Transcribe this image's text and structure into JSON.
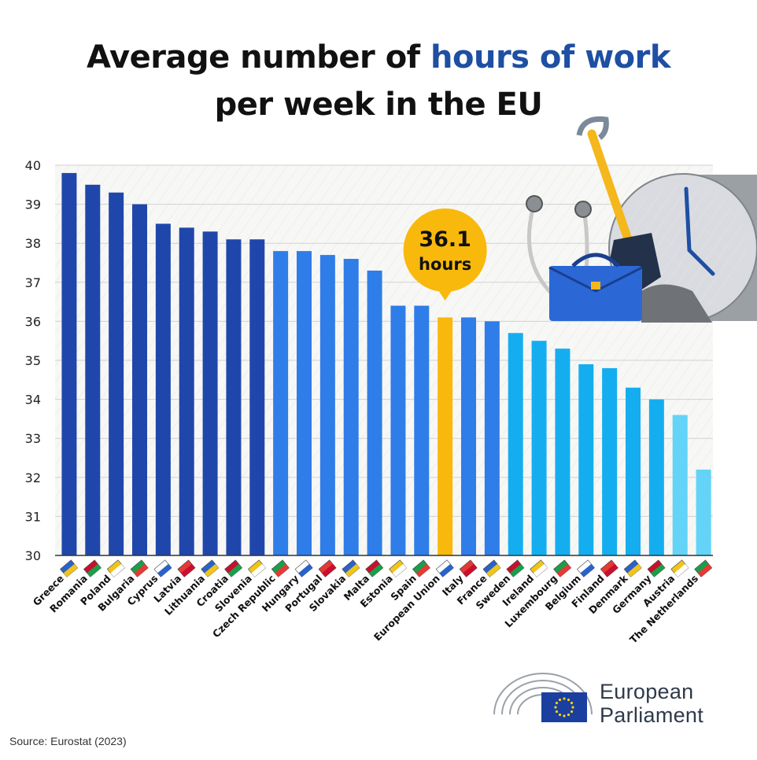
{
  "title": {
    "prefix": "Average number of ",
    "highlight": "hours of work",
    "line2": "per week in the EU"
  },
  "callout": {
    "value": "36.1",
    "unit": "hours"
  },
  "source": "Source: Eurostat (2023)",
  "logo": {
    "line1": "European",
    "line2": "Parliament"
  },
  "colors": {
    "dark_blue": "#1f47ab",
    "mid_blue": "#2f7de8",
    "light_blue": "#14aef0",
    "pale_blue": "#63d3f7",
    "highlight": "#f8b90c"
  },
  "chart_data": {
    "type": "bar",
    "title": "Average number of hours of work per week in the EU",
    "ylim": [
      30,
      40
    ],
    "yticks": [
      "30",
      "31",
      "32",
      "33",
      "34",
      "35",
      "36",
      "37",
      "38",
      "39",
      "40"
    ],
    "grid": true,
    "categories": [
      "Greece",
      "Romania",
      "Poland",
      "Bulgaria",
      "Cyprus",
      "Latvia",
      "Lithuania",
      "Croatia",
      "Slovenia",
      "Czech Republic",
      "Hungary",
      "Portugal",
      "Slovakia",
      "Malta",
      "Estonia",
      "Spain",
      "European Union",
      "Italy",
      "France",
      "Sweden",
      "Ireland",
      "Luxembourg",
      "Belgium",
      "Finland",
      "Denmark",
      "Germany",
      "Austria",
      "The Netherlands"
    ],
    "values": [
      39.8,
      39.5,
      39.3,
      39.0,
      38.5,
      38.4,
      38.3,
      38.1,
      38.1,
      37.8,
      37.8,
      37.7,
      37.6,
      37.3,
      36.4,
      36.4,
      36.1,
      36.1,
      36.0,
      35.7,
      35.5,
      35.3,
      34.9,
      34.8,
      34.3,
      34.0,
      33.6,
      32.2
    ],
    "highlight_category": "European Union",
    "highlight_value": 36.1
  }
}
